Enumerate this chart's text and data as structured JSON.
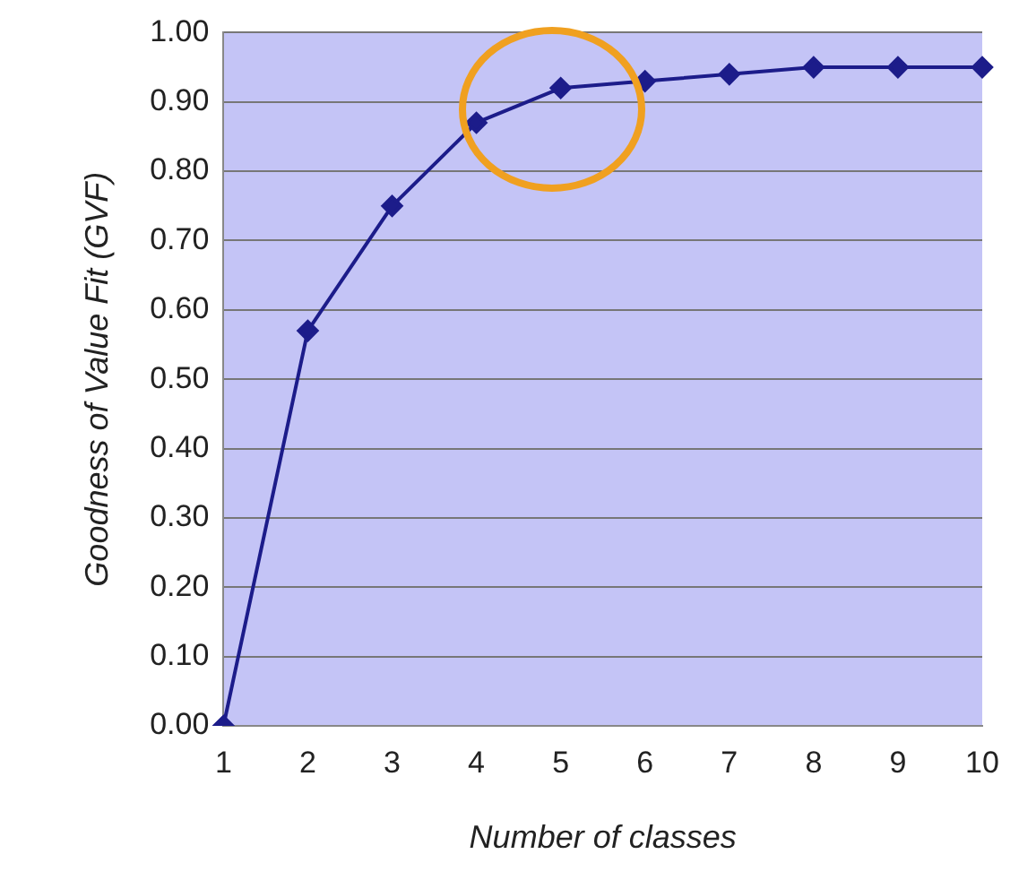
{
  "chart_data": {
    "type": "line",
    "xlabel": "Number of classes",
    "ylabel": "Goodness of Value Fit (GVF)",
    "categories": [
      "1",
      "2",
      "3",
      "4",
      "5",
      "6",
      "7",
      "8",
      "9",
      "10"
    ],
    "series": [
      {
        "color": "#1c1c8a",
        "values": [
          0.0,
          0.57,
          0.75,
          0.87,
          0.92,
          0.93,
          0.94,
          0.95,
          0.95,
          0.95
        ]
      }
    ],
    "ylim": [
      0,
      1
    ],
    "yticks": [
      {
        "value": 0,
        "label": "0.00"
      },
      {
        "value": 0.1,
        "label": "0.10"
      },
      {
        "value": 0.2,
        "label": "0.20"
      },
      {
        "value": 0.3,
        "label": "0.30"
      },
      {
        "value": 0.4,
        "label": "0.40"
      },
      {
        "value": 0.5,
        "label": "0.50"
      },
      {
        "value": 0.6,
        "label": "0.60"
      },
      {
        "value": 0.7,
        "label": "0.70"
      },
      {
        "value": 0.8,
        "label": "0.80"
      },
      {
        "value": 0.9,
        "label": "0.90"
      },
      {
        "value": 1,
        "label": "1.00"
      }
    ],
    "grid": "y",
    "legend": false,
    "marker": "diamond",
    "line_style": "solid"
  }
}
